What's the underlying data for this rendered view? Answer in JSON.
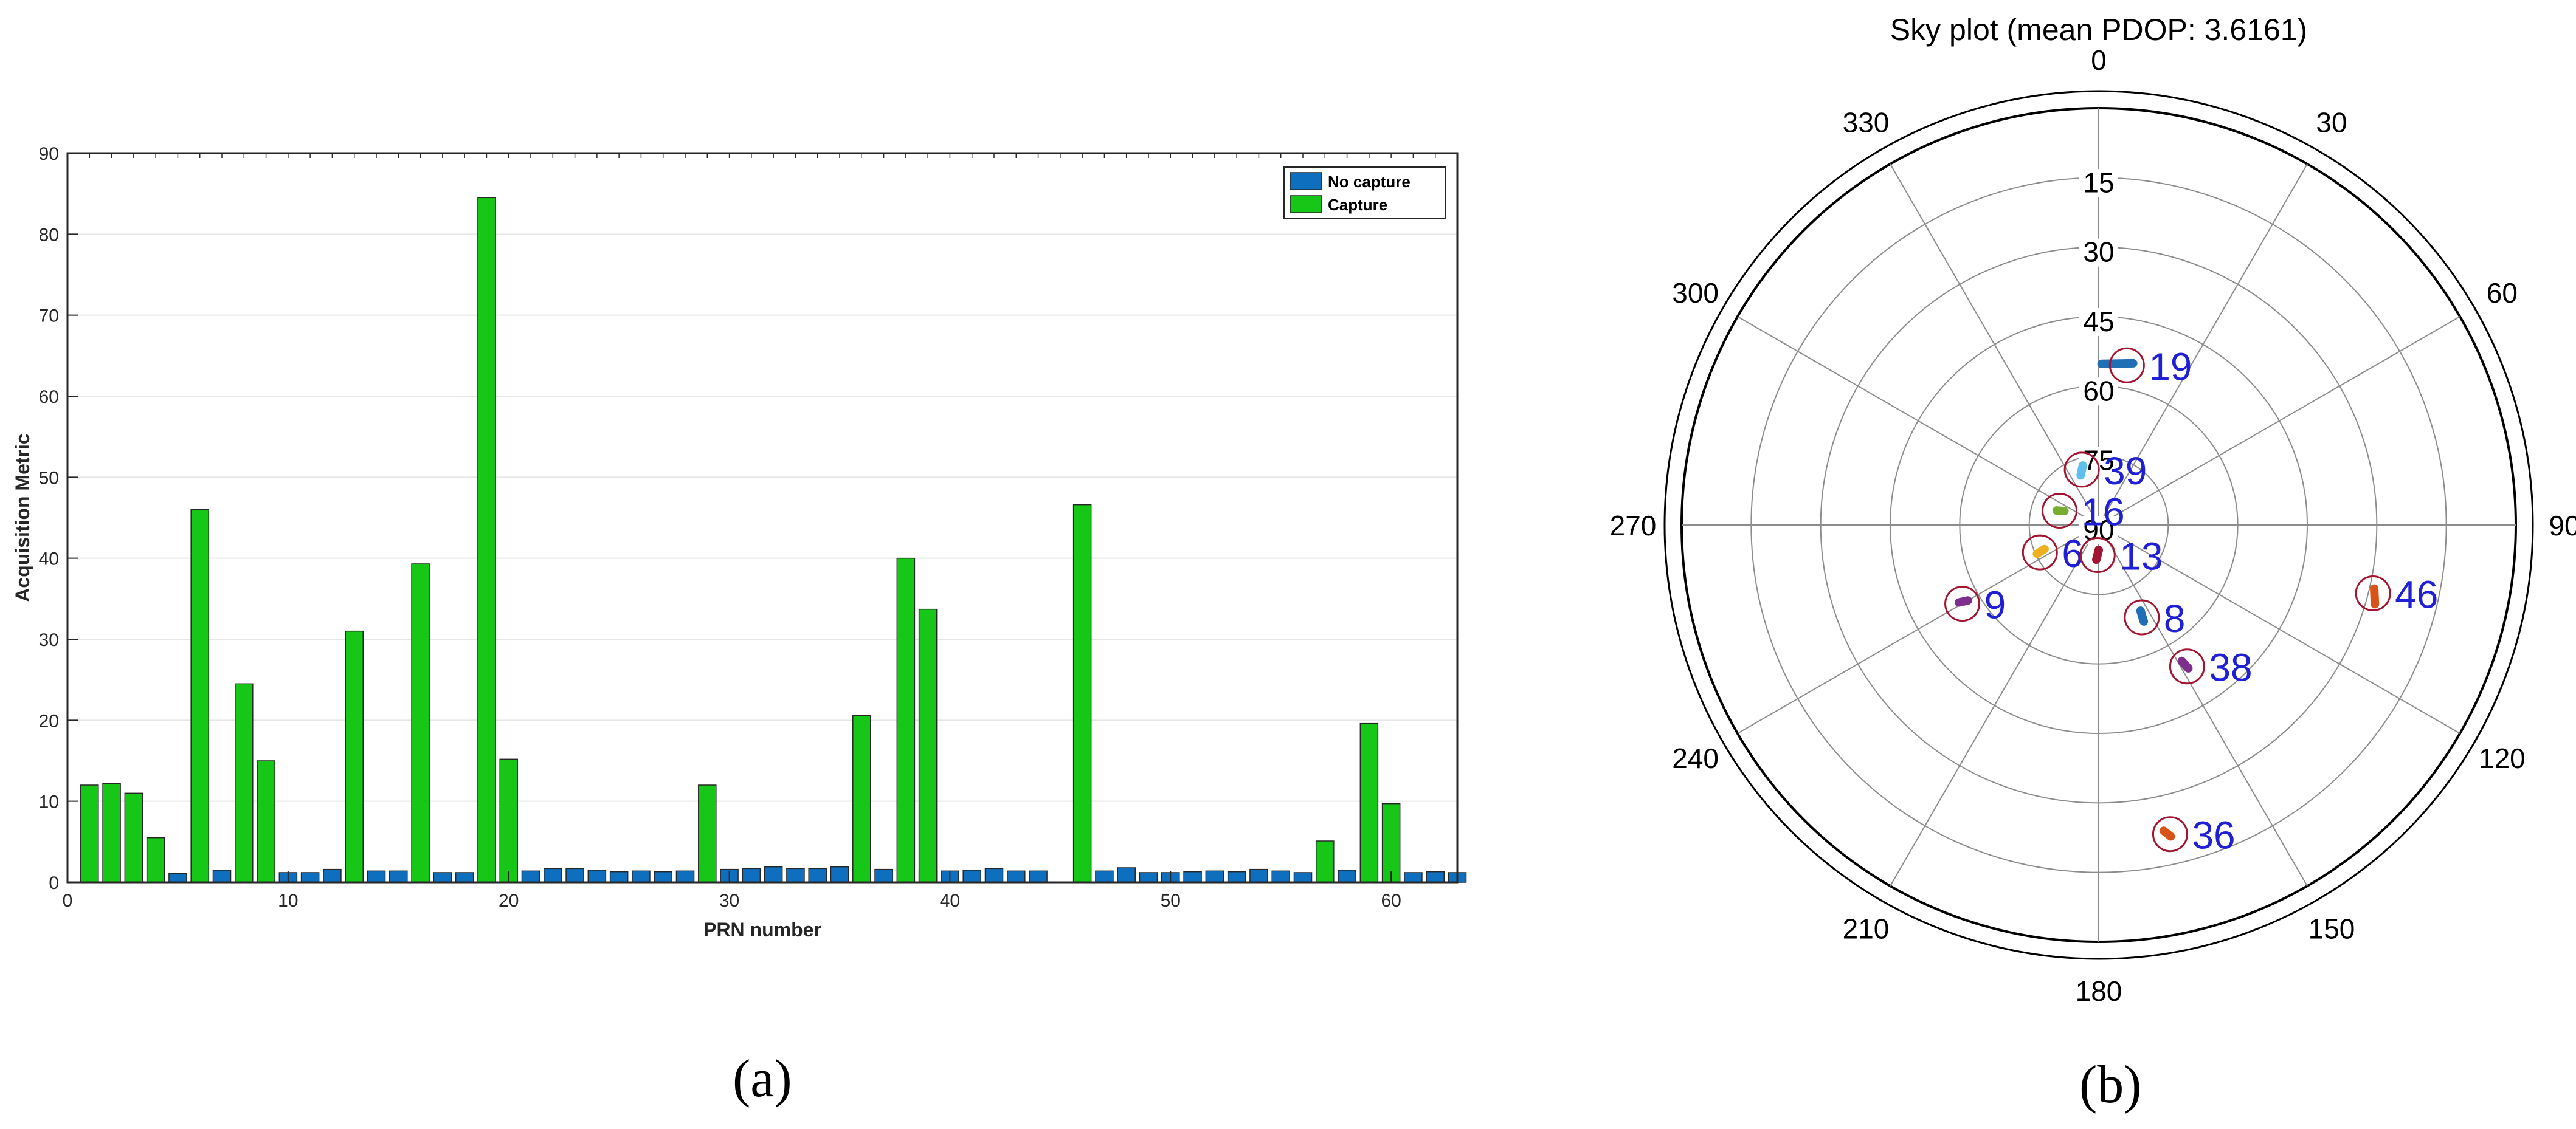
{
  "chart_data": [
    {
      "type": "bar",
      "xlabel": "PRN number",
      "ylabel": "Acquisition Metric",
      "xlim": [
        0,
        63
      ],
      "ylim": [
        0,
        90
      ],
      "xticks": [
        0,
        10,
        20,
        30,
        40,
        50,
        60
      ],
      "yticks": [
        0,
        10,
        20,
        30,
        40,
        50,
        60,
        70,
        80,
        90
      ],
      "grid": "horizontal",
      "legend_position": "top-right",
      "series": [
        {
          "name": "No capture",
          "color": "#0e6fbf",
          "points": [
            [
              5,
              1.1
            ],
            [
              7,
              1.5
            ],
            [
              10,
              1.2
            ],
            [
              11,
              1.2
            ],
            [
              12,
              1.6
            ],
            [
              14,
              1.4
            ],
            [
              15,
              1.4
            ],
            [
              17,
              1.2
            ],
            [
              18,
              1.2
            ],
            [
              21,
              1.4
            ],
            [
              22,
              1.7
            ],
            [
              23,
              1.7
            ],
            [
              24,
              1.5
            ],
            [
              25,
              1.3
            ],
            [
              26,
              1.4
            ],
            [
              27,
              1.3
            ],
            [
              28,
              1.4
            ],
            [
              30,
              1.6
            ],
            [
              31,
              1.7
            ],
            [
              32,
              1.9
            ],
            [
              33,
              1.7
            ],
            [
              34,
              1.7
            ],
            [
              35,
              1.9
            ],
            [
              37,
              1.6
            ],
            [
              39,
              1.5
            ],
            [
              40,
              1.4
            ],
            [
              41,
              1.5
            ],
            [
              42,
              1.7
            ],
            [
              43,
              1.4
            ],
            [
              44,
              1.4
            ],
            [
              47,
              1.4
            ],
            [
              48,
              1.8
            ],
            [
              49,
              1.2
            ],
            [
              50,
              1.2
            ],
            [
              51,
              1.3
            ],
            [
              52,
              1.4
            ],
            [
              53,
              1.3
            ],
            [
              54,
              1.6
            ],
            [
              55,
              1.4
            ],
            [
              56,
              1.2
            ],
            [
              58,
              1.5
            ],
            [
              61,
              1.2
            ],
            [
              62,
              1.3
            ],
            [
              63,
              1.2
            ]
          ]
        },
        {
          "name": "Capture",
          "color": "#17c717",
          "points": [
            [
              1,
              12
            ],
            [
              2,
              12.2
            ],
            [
              3,
              11
            ],
            [
              4,
              5.5
            ],
            [
              6,
              46
            ],
            [
              8,
              24.5
            ],
            [
              9,
              15
            ],
            [
              13,
              31
            ],
            [
              16,
              39.3
            ],
            [
              19,
              84.5
            ],
            [
              20,
              15.2
            ],
            [
              29,
              12
            ],
            [
              36,
              20.6
            ],
            [
              38,
              40
            ],
            [
              39,
              33.7
            ],
            [
              46,
              46.6
            ],
            [
              57,
              5.1
            ],
            [
              59,
              19.6
            ],
            [
              60,
              9.7
            ]
          ]
        }
      ]
    },
    {
      "type": "polar-scatter",
      "title": "Sky plot (mean PDOP: 3.6161)",
      "angle_ticks": [
        "0",
        "30",
        "60",
        "90",
        "120",
        "150",
        "180",
        "210",
        "240",
        "270",
        "300",
        "330"
      ],
      "elevation_ticks": [
        "15",
        "30",
        "45",
        "60",
        "75",
        "90"
      ],
      "elevation_values": [
        0,
        15,
        30,
        45,
        60,
        75,
        90
      ],
      "satellites": [
        {
          "prn": "19",
          "azimuth": 10,
          "elevation": 55,
          "color": "#1f6fb5",
          "track": [
            [
              1,
              55.2
            ],
            [
              12,
              54.3
            ]
          ]
        },
        {
          "prn": "39",
          "azimuth": 343,
          "elevation": 77.5,
          "color": "#5ec0ea",
          "track": [
            [
              340,
              78.6
            ],
            [
              345,
              76.7
            ]
          ]
        },
        {
          "prn": "16",
          "azimuth": 290,
          "elevation": 81,
          "color": "#77ac30",
          "track": [
            [
              289,
              80.4
            ],
            [
              292,
              82
            ]
          ]
        },
        {
          "prn": "6",
          "azimuth": 245,
          "elevation": 76,
          "color": "#edb120",
          "track": [
            [
              245,
              75.3
            ],
            [
              246,
              77.2
            ]
          ]
        },
        {
          "prn": "13",
          "azimuth": 182,
          "elevation": 83.5,
          "color": "#a2142f",
          "track": [
            [
              180,
              84.6
            ],
            [
              184,
              82.5
            ]
          ]
        },
        {
          "prn": "8",
          "azimuth": 155,
          "elevation": 68,
          "color": "#1f6fb5",
          "track": [
            [
              155,
              67
            ],
            [
              154,
              69.4
            ]
          ]
        },
        {
          "prn": "9",
          "azimuth": 240,
          "elevation": 56,
          "color": "#7e2f8e",
          "track": [
            [
              241,
              55.5
            ],
            [
              240,
              57.4
            ]
          ]
        },
        {
          "prn": "38",
          "azimuth": 148,
          "elevation": 54,
          "color": "#7e2f8e",
          "track": [
            [
              148,
              53.5
            ],
            [
              148.6,
              55.6
            ]
          ]
        },
        {
          "prn": "46",
          "azimuth": 104,
          "elevation": 29,
          "color": "#d95319",
          "track": [
            [
              103,
              29
            ],
            [
              106,
              28
            ]
          ]
        },
        {
          "prn": "36",
          "azimuth": 167,
          "elevation": 21.5,
          "color": "#d95319",
          "track": [
            [
              167,
              21
            ],
            [
              168,
              22.5
            ]
          ]
        }
      ]
    }
  ],
  "captions": {
    "a": "(a)",
    "b": "(b)"
  }
}
